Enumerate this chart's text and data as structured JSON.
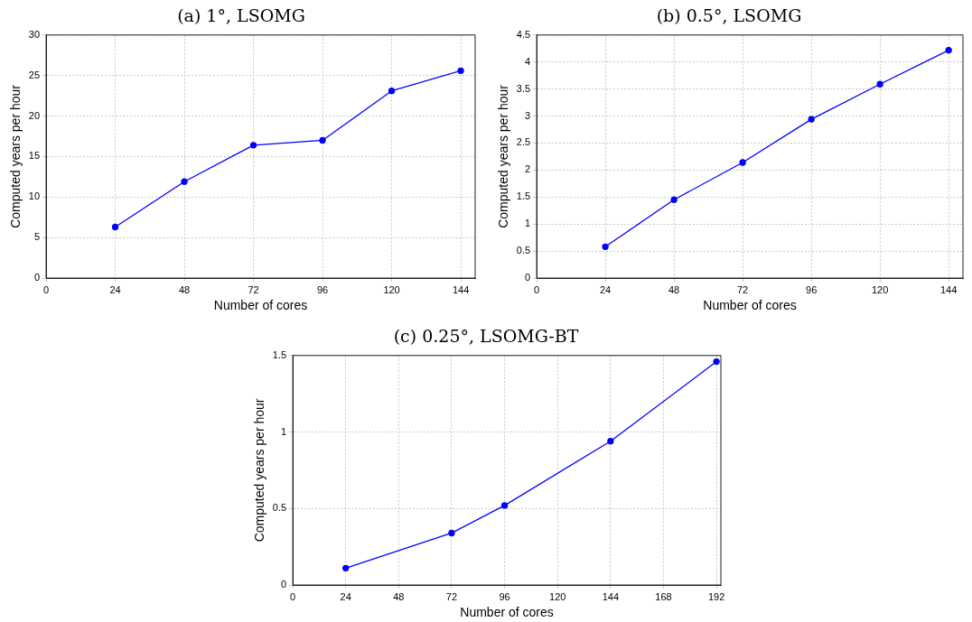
{
  "chart_data": [
    {
      "type": "line",
      "title": "(a) 1°, LSOMG",
      "xlabel": "Number of cores",
      "ylabel": "Computed years per hour",
      "x": [
        24,
        48,
        72,
        96,
        120,
        144
      ],
      "series": [
        {
          "color": "#0000ff",
          "values": [
            6.3,
            11.9,
            16.4,
            17.0,
            23.1,
            25.6
          ]
        }
      ],
      "xlim": [
        0,
        149
      ],
      "xticks": [
        0,
        24,
        48,
        72,
        96,
        120,
        144
      ],
      "ylim": [
        0,
        30
      ],
      "yticks": [
        0,
        5,
        10,
        15,
        20,
        25,
        30
      ],
      "grid": true,
      "legend": false,
      "marker": "circle",
      "line_style": "solid"
    },
    {
      "type": "line",
      "title": "(b) 0.5°, LSOMG",
      "xlabel": "Number of cores",
      "ylabel": "Computed years per hour",
      "x": [
        24,
        48,
        72,
        96,
        120,
        144
      ],
      "series": [
        {
          "color": "#0000ff",
          "values": [
            0.58,
            1.45,
            2.14,
            2.94,
            3.59,
            4.22
          ]
        }
      ],
      "xlim": [
        0,
        149
      ],
      "xticks": [
        0,
        24,
        48,
        72,
        96,
        120,
        144
      ],
      "ylim": [
        0,
        4.5
      ],
      "yticks": [
        0,
        0.5,
        1,
        1.5,
        2,
        2.5,
        3,
        3.5,
        4,
        4.5
      ],
      "grid": true,
      "legend": false,
      "marker": "circle",
      "line_style": "solid"
    },
    {
      "type": "line",
      "title": "(c) 0.25°, LSOMG-BT",
      "xlabel": "Number of cores",
      "ylabel": "Computed years per hour",
      "x": [
        24,
        72,
        96,
        144,
        192
      ],
      "series": [
        {
          "color": "#0000ff",
          "values": [
            0.11,
            0.34,
            0.52,
            0.94,
            1.46
          ]
        }
      ],
      "xlim": [
        0,
        194
      ],
      "xticks": [
        0,
        24,
        48,
        72,
        96,
        120,
        144,
        168,
        192
      ],
      "ylim": [
        0,
        1.5
      ],
      "yticks": [
        0,
        0.5,
        1,
        1.5
      ],
      "grid": true,
      "legend": false,
      "marker": "circle",
      "line_style": "solid"
    }
  ]
}
